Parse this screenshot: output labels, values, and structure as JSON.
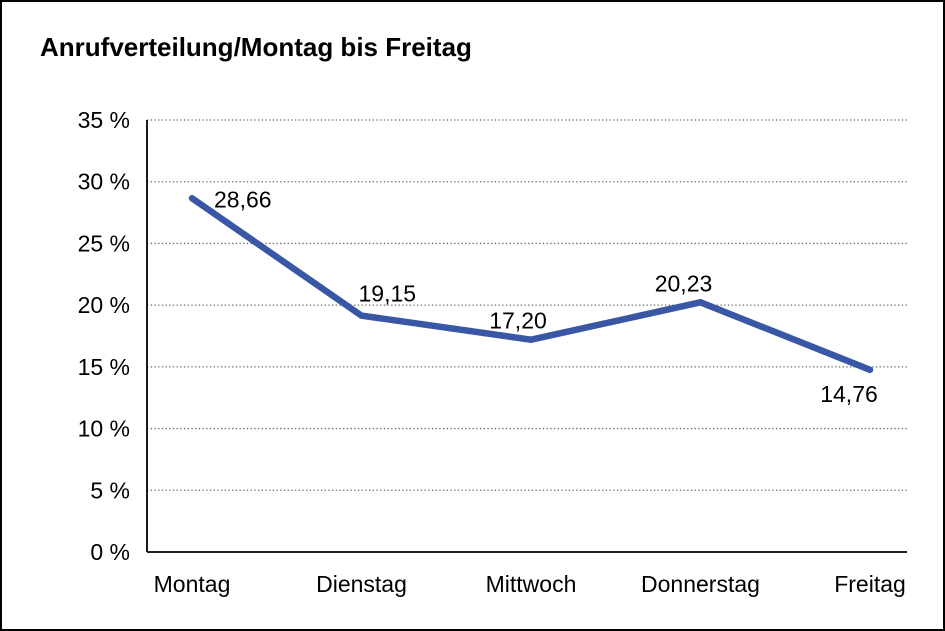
{
  "window": {
    "background": "#ffffff",
    "border_color": "#000000"
  },
  "chart": {
    "title": "Anrufverteilung/Montag bis Freitag"
  },
  "chart_data": {
    "type": "line",
    "title": "Anrufverteilung/Montag bis Freitag",
    "categories": [
      "Montag",
      "Dienstag",
      "Mittwoch",
      "Donnerstag",
      "Freitag"
    ],
    "series": [
      {
        "name": "Anrufverteilung",
        "values": [
          28.66,
          19.15,
          17.2,
          20.23,
          14.76
        ]
      }
    ],
    "point_labels": [
      "28,66",
      "19,15",
      "17,20",
      "20,23",
      "14,76"
    ],
    "y_ticks": [
      0,
      5,
      10,
      15,
      20,
      25,
      30,
      35
    ],
    "y_tick_labels": [
      "0 %",
      "5 %",
      "10 %",
      "15 %",
      "20 %",
      "25 %",
      "30 %",
      "35 %"
    ],
    "ylim": [
      0,
      35
    ],
    "xlabel": "",
    "ylabel": "",
    "grid": "horizontal-dotted",
    "legend": "none",
    "line_color": "#3A57A5",
    "grid_color": "#666666",
    "axis_color": "#000000",
    "text_color": "#000000"
  }
}
